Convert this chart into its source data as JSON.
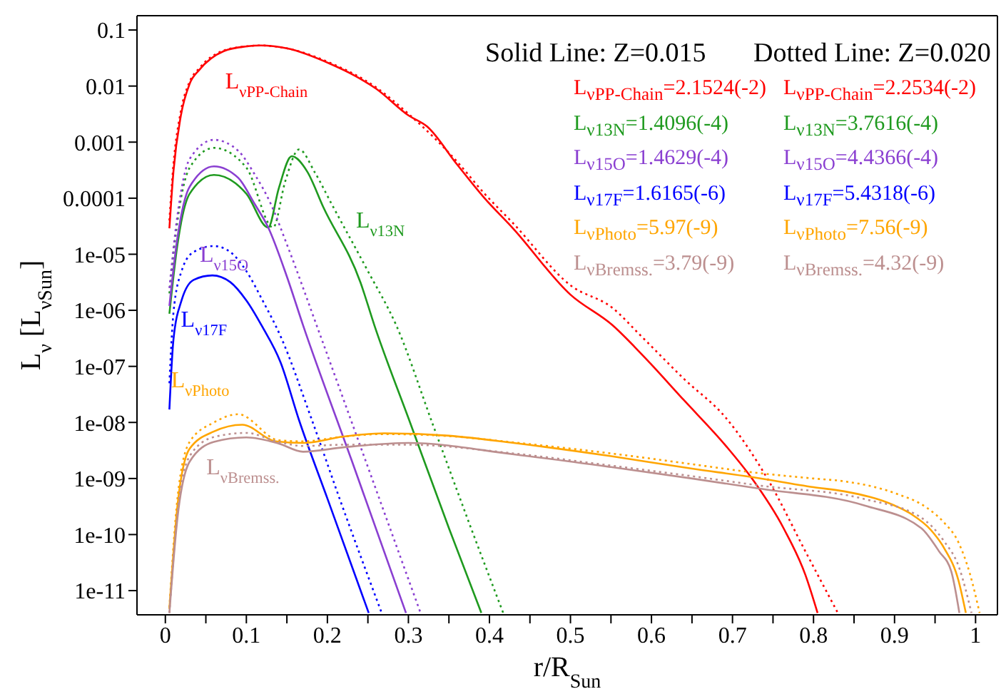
{
  "chart_data": {
    "type": "line",
    "xlabel": "r/R$_{Sun}$",
    "ylabel": "L$_{ν}$ [L$_{νSun}$]",
    "log": "y",
    "marker": "none",
    "xlim": [
      -0.035,
      1.027
    ],
    "xticks": [
      0,
      {
        "value": 0.05,
        "label": null
      },
      0.1,
      {
        "value": 0.15,
        "label": null
      },
      0.2,
      {
        "value": 0.25,
        "label": null
      },
      0.3,
      {
        "value": 0.35,
        "label": null
      },
      0.4,
      {
        "value": 0.45,
        "label": null
      },
      0.5,
      {
        "value": 0.55,
        "label": null
      },
      0.6,
      {
        "value": 0.65,
        "label": null
      },
      0.7,
      {
        "value": 0.75,
        "label": null
      },
      0.8,
      {
        "value": 0.85,
        "label": null
      },
      0.9,
      {
        "value": 0.95,
        "label": null
      },
      1
    ],
    "ylim": [
      3.7e-12,
      0.18
    ],
    "yticks": [
      0.1,
      0.01,
      0.001,
      0.0001,
      {
        "value": 1e-05,
        "label": "1e-05"
      },
      {
        "value": 1e-06,
        "label": "1e-06"
      },
      {
        "value": 1e-07,
        "label": "1e-07"
      },
      {
        "value": 1e-08,
        "label": "1e-08"
      },
      {
        "value": 1e-09,
        "label": "1e-09"
      },
      {
        "value": 1e-10,
        "label": "1e-10"
      },
      {
        "value": 1e-11,
        "label": "1e-11"
      }
    ],
    "annotations": [
      "Solid Line: Z=0.015",
      "Dotted Line: Z=0.020",
      "L$_{νPP-Chain}$=2.1524(-2)",
      "L$_{νPP-Chain}$=2.2534(-2)",
      "L$_{ν13N}$=1.4096(-4)",
      "L$_{ν13N}$=3.7616(-4)",
      "L$_{ν15O}$=1.4629(-4)",
      "L$_{ν15O}$=4.4366(-4)",
      "L$_{ν17F}$=1.6165(-6)",
      "L$_{ν17F}$=5.4318(-6)",
      "L$_{νPhoto}$=5.97(-9)",
      "L$_{νPhoto}$=7.56(-9)",
      "L$_{νBremss.}$=3.79(-9)",
      "L$_{νBremss.}$=4.32(-9)"
    ],
    "series": [
      {
        "name": "L$_{νPP-Chain}$",
        "color": "#ff0000",
        "line_style": "solid",
        "x": [
          0.005,
          0.01,
          0.019,
          0.03,
          0.042,
          0.072,
          0.1,
          0.118,
          0.15,
          0.206,
          0.235,
          0.26,
          0.3,
          0.323,
          0.36,
          0.394,
          0.429,
          0.5,
          0.552,
          0.587,
          0.64,
          0.692,
          0.724,
          0.763,
          0.79,
          0.805
        ],
        "values": [
          2.9e-05,
          0.0003,
          0.0029,
          0.011,
          0.0195,
          0.042,
          0.051,
          0.053,
          0.047,
          0.024,
          0.015,
          0.009,
          0.003,
          0.0019,
          0.0004,
          0.0001,
          2.9e-05,
          1.9e-06,
          5.4e-07,
          1.7e-07,
          2.5e-08,
          3.8e-09,
          1e-09,
          1.3e-10,
          1.9e-11,
          4e-12
        ]
      },
      {
        "color": "#ff0000",
        "line_style": "dotted",
        "x": [
          0.005,
          0.01,
          0.019,
          0.03,
          0.042,
          0.072,
          0.1,
          0.118,
          0.15,
          0.206,
          0.26,
          0.3,
          0.36,
          0.394,
          0.429,
          0.5,
          0.552,
          0.587,
          0.64,
          0.692,
          0.745,
          0.79,
          0.83
        ],
        "values": [
          4e-05,
          0.0004,
          0.0035,
          0.012,
          0.021,
          0.043,
          0.051,
          0.053,
          0.047,
          0.025,
          0.0095,
          0.0032,
          0.00045,
          0.00012,
          3.6e-05,
          2.8e-06,
          1.1e-06,
          3.5e-07,
          6e-08,
          1.2e-08,
          8.9e-10,
          5e-11,
          4e-12
        ]
      },
      {
        "name": "L$_{ν13N}$",
        "color": "#1f9a1f",
        "line_style": "solid",
        "x": [
          0.005,
          0.015,
          0.03,
          0.06,
          0.1,
          0.127,
          0.14,
          0.156,
          0.175,
          0.195,
          0.241,
          0.258,
          0.302,
          0.35,
          0.39
        ],
        "values": [
          8.7e-07,
          1.5e-05,
          0.00012,
          0.00026,
          0.00012,
          3e-05,
          0.00015,
          0.00056,
          0.0003,
          6.9e-05,
          3.1e-06,
          5.4e-07,
          1e-08,
          1.3e-10,
          4e-12
        ]
      },
      {
        "color": "#1f9a1f",
        "line_style": "dotted",
        "x": [
          0.005,
          0.015,
          0.03,
          0.06,
          0.1,
          0.133,
          0.148,
          0.165,
          0.185,
          0.205,
          0.25,
          0.285,
          0.33,
          0.375,
          0.417
        ],
        "values": [
          2e-06,
          4e-05,
          0.00035,
          0.00079,
          0.00035,
          3e-05,
          0.0002,
          0.00074,
          0.00028,
          8e-05,
          5e-06,
          5.4e-07,
          9.3e-09,
          1.6e-10,
          4e-12
        ]
      },
      {
        "name": "L$_{ν15O}$",
        "color": "#8a3fd1",
        "line_style": "solid",
        "x": [
          0.005,
          0.015,
          0.03,
          0.06,
          0.09,
          0.11,
          0.127,
          0.15,
          0.17,
          0.23,
          0.297
        ],
        "values": [
          1.2e-06,
          2e-05,
          0.00016,
          0.00037,
          0.00023,
          8e-05,
          3e-05,
          4e-06,
          5.4e-07,
          2.1e-09,
          4e-12
        ]
      },
      {
        "color": "#8a3fd1",
        "line_style": "dotted",
        "x": [
          0.005,
          0.015,
          0.03,
          0.06,
          0.09,
          0.11,
          0.13,
          0.15,
          0.19,
          0.25,
          0.315
        ],
        "values": [
          2.5e-06,
          5e-05,
          0.0005,
          0.0011,
          0.0007,
          0.00027,
          8e-05,
          1.5e-05,
          4e-07,
          1.6e-09,
          4e-12
        ]
      },
      {
        "name": "L$_{ν17F}$",
        "color": "#0000ff",
        "line_style": "solid",
        "x": [
          0.005,
          0.01,
          0.02,
          0.035,
          0.058,
          0.08,
          0.1,
          0.12,
          0.142,
          0.165,
          0.2,
          0.251
        ],
        "values": [
          1.7e-08,
          3e-07,
          1.5e-06,
          3.5e-06,
          4.2e-06,
          3.2e-06,
          1.5e-06,
          5e-07,
          1.2e-07,
          1.1e-08,
          4.4e-10,
          4e-12
        ]
      },
      {
        "color": "#0000ff",
        "line_style": "dotted",
        "x": [
          0.005,
          0.01,
          0.02,
          0.035,
          0.06,
          0.08,
          0.1,
          0.12,
          0.142,
          0.18,
          0.215,
          0.267
        ],
        "values": [
          5e-08,
          9e-07,
          5e-06,
          1.1e-05,
          1.4e-05,
          1.1e-05,
          5e-06,
          1.5e-06,
          3.5e-07,
          1.2e-08,
          4.4e-10,
          4e-12
        ]
      },
      {
        "name": "L$_{νPhoto}$",
        "color": "#ffa500",
        "line_style": "solid",
        "x": [
          0.005,
          0.015,
          0.03,
          0.06,
          0.095,
          0.136,
          0.17,
          0.22,
          0.27,
          0.35,
          0.43,
          0.55,
          0.65,
          0.722,
          0.8,
          0.838,
          0.9,
          0.921,
          0.945,
          0.961,
          0.979,
          0.988
        ],
        "values": [
          4.7e-12,
          3.3e-10,
          3.4e-09,
          6.9e-09,
          9.1e-09,
          4.6e-09,
          4.3e-09,
          5.6e-09,
          6.4e-09,
          5.8e-09,
          4.3e-09,
          2.5e-09,
          1.5e-09,
          1.07e-09,
          7e-10,
          5.9e-10,
          3.3e-10,
          2.3e-10,
          1.2e-10,
          5.8e-11,
          1.5e-11,
          4e-12
        ]
      },
      {
        "color": "#ffa500",
        "line_style": "dotted",
        "x": [
          0.005,
          0.015,
          0.03,
          0.06,
          0.09,
          0.14,
          0.17,
          0.22,
          0.27,
          0.35,
          0.43,
          0.55,
          0.65,
          0.722,
          0.8,
          0.838,
          0.9,
          0.94,
          0.96,
          0.979,
          0.993,
          1.005
        ],
        "values": [
          5e-12,
          4.5e-10,
          4.5e-09,
          1e-08,
          1.4e-08,
          4.8e-09,
          4.6e-09,
          5.6e-09,
          6.2e-09,
          5.7e-09,
          4.4e-09,
          2.8e-09,
          1.8e-09,
          1.3e-09,
          1e-09,
          8.9e-10,
          5.5e-10,
          3e-10,
          1.7e-10,
          7.2e-11,
          2e-11,
          4e-12
        ]
      },
      {
        "name": "L$_{νBremss.}$",
        "color": "#bc8f8f",
        "line_style": "solid",
        "x": [
          0.005,
          0.015,
          0.03,
          0.06,
          0.1,
          0.14,
          0.17,
          0.22,
          0.3,
          0.43,
          0.55,
          0.65,
          0.733,
          0.863,
          0.933,
          0.955,
          0.97,
          0.98
        ],
        "values": [
          4e-12,
          2e-10,
          2e-09,
          4.5e-09,
          5.4e-09,
          4.2e-09,
          3e-09,
          3.6e-09,
          4.3e-09,
          2.7e-09,
          1.6e-09,
          1e-09,
          6.6e-10,
          3.3e-10,
          1.3e-10,
          5e-11,
          2.2e-11,
          4e-12
        ]
      },
      {
        "color": "#bc8f8f",
        "line_style": "dotted",
        "x": [
          0.005,
          0.015,
          0.03,
          0.06,
          0.1,
          0.14,
          0.17,
          0.22,
          0.3,
          0.43,
          0.55,
          0.65,
          0.733,
          0.863,
          0.933,
          0.96,
          0.98,
          0.995
        ],
        "values": [
          4e-12,
          2.5e-10,
          2.5e-09,
          5.5e-09,
          6.5e-09,
          4.5e-09,
          3.8e-09,
          4e-09,
          4e-09,
          2.8e-09,
          1.7e-09,
          1.1e-09,
          7.5e-10,
          4.3e-10,
          2e-10,
          8e-11,
          2.5e-11,
          4e-12
        ]
      }
    ]
  }
}
